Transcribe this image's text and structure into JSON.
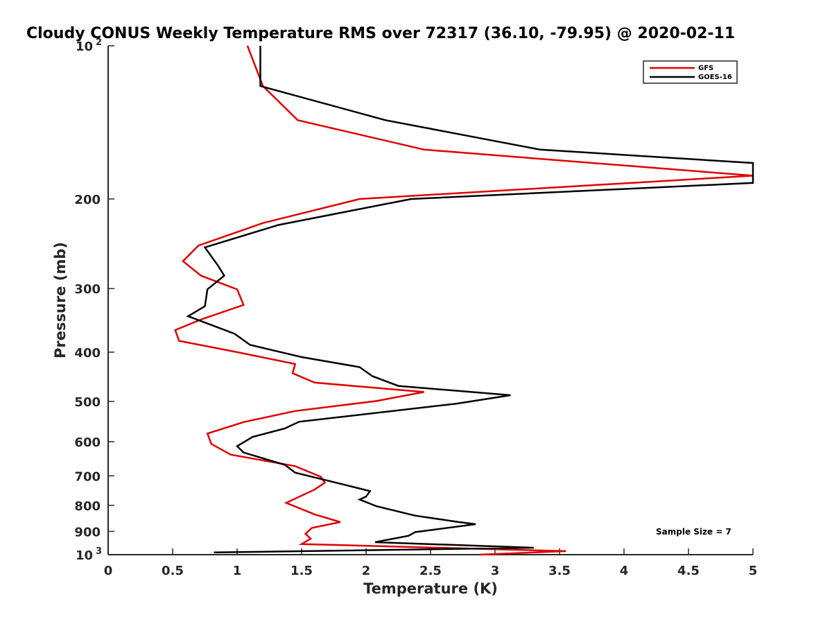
{
  "chart_data": {
    "type": "line",
    "title": "Cloudy CONUS Weekly Temperature RMS over 72317 (36.10, -79.95) @ 2020-02-11",
    "xlabel": "Temperature (K)",
    "ylabel": "Pressure (mb)",
    "xlim": [
      0,
      5
    ],
    "ylim": [
      100,
      1000
    ],
    "yscale": "log",
    "yreversed": true,
    "grid": false,
    "legend_position": "top-right",
    "x_ticks": [
      0,
      0.5,
      1,
      1.5,
      2,
      2.5,
      3,
      3.5,
      4,
      4.5,
      5
    ],
    "x_tick_labels": [
      "0",
      "0.5",
      "1",
      "1.5",
      "2",
      "2.5",
      "3",
      "3.5",
      "4",
      "4.5",
      "5"
    ],
    "y_ticks": [
      {
        "value": 100,
        "base": "10",
        "exp": "2"
      },
      {
        "value": 200,
        "label": "200"
      },
      {
        "value": 300,
        "label": "300"
      },
      {
        "value": 400,
        "label": "400"
      },
      {
        "value": 500,
        "label": "500"
      },
      {
        "value": 600,
        "label": "600"
      },
      {
        "value": 700,
        "label": "700"
      },
      {
        "value": 800,
        "label": "800"
      },
      {
        "value": 900,
        "label": "900"
      },
      {
        "value": 1000,
        "base": "10",
        "exp": "3"
      }
    ],
    "annotation": "Sample Size = 7",
    "series": [
      {
        "name": "GFS",
        "color": "#e00000",
        "points": [
          [
            1.08,
            100
          ],
          [
            1.2,
            120
          ],
          [
            1.47,
            140
          ],
          [
            2.45,
            160
          ],
          [
            5.0,
            180
          ],
          [
            1.95,
            200
          ],
          [
            1.2,
            223
          ],
          [
            0.7,
            247
          ],
          [
            0.58,
            265
          ],
          [
            0.72,
            283
          ],
          [
            1.0,
            301
          ],
          [
            1.05,
            323
          ],
          [
            0.72,
            345
          ],
          [
            0.52,
            362
          ],
          [
            0.55,
            380
          ],
          [
            1.0,
            400
          ],
          [
            1.45,
            422
          ],
          [
            1.43,
            440
          ],
          [
            1.6,
            459
          ],
          [
            2.45,
            479
          ],
          [
            2.08,
            499
          ],
          [
            1.45,
            522
          ],
          [
            1.05,
            549
          ],
          [
            0.77,
            578
          ],
          [
            0.8,
            606
          ],
          [
            0.95,
            636
          ],
          [
            1.45,
            670
          ],
          [
            1.65,
            703
          ],
          [
            1.68,
            722
          ],
          [
            1.6,
            745
          ],
          [
            1.38,
            791
          ],
          [
            1.6,
            833
          ],
          [
            1.8,
            863
          ],
          [
            1.58,
            886
          ],
          [
            1.53,
            910
          ],
          [
            1.57,
            930
          ],
          [
            1.5,
            953
          ],
          [
            3.55,
            984
          ],
          [
            2.88,
            1000
          ]
        ]
      },
      {
        "name": "GOES-16",
        "color": "#000000",
        "points": [
          [
            1.18,
            100
          ],
          [
            1.18,
            120
          ],
          [
            2.15,
            140
          ],
          [
            3.35,
            160
          ],
          [
            5.0,
            170
          ],
          [
            5.0,
            186
          ],
          [
            2.35,
            200
          ],
          [
            1.32,
            225
          ],
          [
            0.75,
            249
          ],
          [
            0.85,
            270
          ],
          [
            0.9,
            283
          ],
          [
            0.77,
            301
          ],
          [
            0.75,
            325
          ],
          [
            0.62,
            340
          ],
          [
            0.98,
            368
          ],
          [
            1.1,
            387
          ],
          [
            1.5,
            409
          ],
          [
            1.95,
            428
          ],
          [
            2.05,
            446
          ],
          [
            2.25,
            466
          ],
          [
            3.12,
            486
          ],
          [
            2.7,
            505
          ],
          [
            1.48,
            548
          ],
          [
            1.37,
            565
          ],
          [
            1.12,
            587
          ],
          [
            1.0,
            612
          ],
          [
            1.05,
            630
          ],
          [
            1.37,
            666
          ],
          [
            1.45,
            690
          ],
          [
            1.65,
            710
          ],
          [
            2.03,
            750
          ],
          [
            2.0,
            769
          ],
          [
            1.95,
            779
          ],
          [
            2.08,
            803
          ],
          [
            2.38,
            838
          ],
          [
            2.72,
            863
          ],
          [
            2.85,
            871
          ],
          [
            2.38,
            903
          ],
          [
            2.33,
            918
          ],
          [
            2.07,
            945
          ],
          [
            3.3,
            969
          ],
          [
            0.82,
            990
          ]
        ]
      }
    ]
  }
}
